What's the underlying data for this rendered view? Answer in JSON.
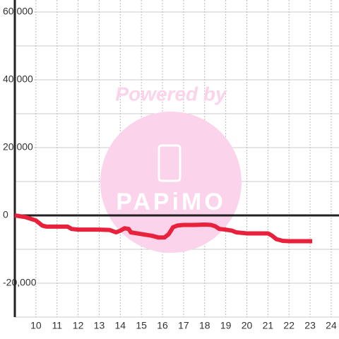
{
  "chart_data": {
    "type": "line",
    "watermark": {
      "top": "Powered by",
      "brand": "PAPiMO"
    },
    "xlim": [
      9,
      24.37
    ],
    "xticks": [
      10,
      11,
      12,
      13,
      14,
      15,
      16,
      17,
      18,
      19,
      20,
      21,
      22,
      23,
      24
    ],
    "ylim": [
      -30000,
      60000
    ],
    "yticks": [
      {
        "value": -20000,
        "label": "-20,000"
      },
      0,
      {
        "value": 20000,
        "label": "20,000"
      },
      {
        "value": 40000,
        "label": "40,000"
      },
      {
        "value": 60000,
        "label": "60,000"
      }
    ],
    "minor_yticks": [
      -30000,
      -10000,
      10000,
      30000,
      50000
    ],
    "grid": true,
    "series": [
      {
        "color": "#e8223c",
        "x": [
          9,
          9.5,
          10,
          10.3,
          10.5,
          11,
          11.5,
          11.7,
          12,
          13,
          13.5,
          13.8,
          14,
          14.2,
          14.4,
          14.5,
          15,
          15.5,
          15.8,
          16.1,
          16.3,
          16.5,
          16.7,
          17,
          17.5,
          18,
          18.3,
          18.5,
          18.7,
          19,
          19.3,
          19.5,
          20,
          20.5,
          21,
          21.2,
          21.4,
          21.7,
          22,
          23,
          23.1
        ],
        "values": [
          0,
          -500,
          -1500,
          -3000,
          -3300,
          -3300,
          -3300,
          -4000,
          -4200,
          -4200,
          -4300,
          -5000,
          -4500,
          -3800,
          -4000,
          -5000,
          -5500,
          -6000,
          -6500,
          -6500,
          -5500,
          -3500,
          -3000,
          -2800,
          -2800,
          -2700,
          -2800,
          -3200,
          -4000,
          -4200,
          -4500,
          -5000,
          -5300,
          -5300,
          -5300,
          -6000,
          -7000,
          -7500,
          -7600,
          -7600,
          -7600
        ]
      }
    ]
  }
}
